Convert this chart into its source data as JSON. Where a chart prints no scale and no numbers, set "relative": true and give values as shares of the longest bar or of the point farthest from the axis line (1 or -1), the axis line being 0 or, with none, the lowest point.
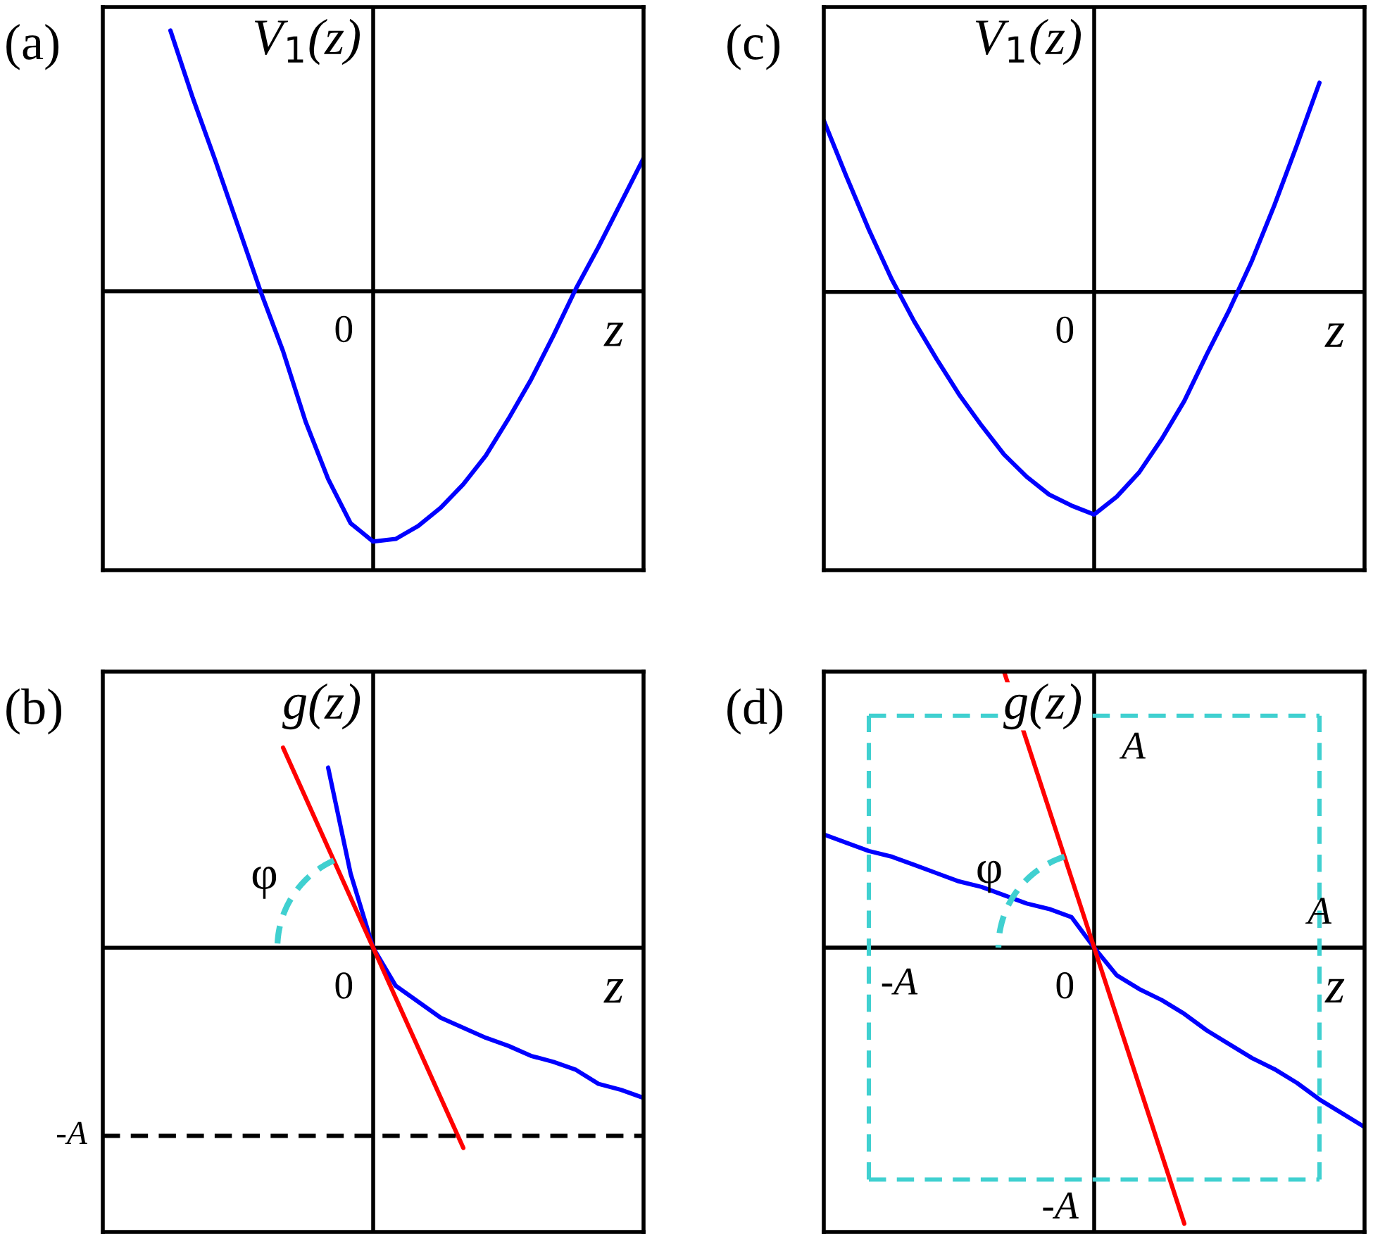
{
  "chart_data": [
    {
      "type": "line",
      "title": "(a)",
      "ylabel": "V$_{1}$(z)",
      "xlabel": "z",
      "relative": true,
      "annotations": [
        "0"
      ],
      "categories": [
        null,
        null,
        null,
        null,
        null,
        null,
        null,
        null,
        null,
        null,
        null,
        null,
        null,
        null,
        null,
        null,
        null,
        null,
        null,
        null,
        null,
        null,
        null,
        null,
        null
      ],
      "series": [
        {
          "color": "#0000ff",
          "values": [
            null,
            null,
            null,
            1,
            0.74,
            0.5,
            0.25,
            0,
            -0.23,
            -0.5,
            -0.72,
            -0.89,
            -0.96,
            -0.95,
            -0.9,
            -0.83,
            -0.74,
            -0.63,
            -0.49,
            -0.34,
            -0.17,
            0.01,
            0.17,
            0.34,
            0.51
          ]
        }
      ]
    },
    {
      "type": "line",
      "title": "(c)",
      "ylabel": "V$_{1}$(z)",
      "xlabel": "z",
      "relative": true,
      "annotations": [
        "0"
      ],
      "categories": [
        null,
        null,
        null,
        null,
        null,
        null,
        null,
        null,
        null,
        null,
        null,
        null,
        null,
        null,
        null,
        null,
        null,
        null,
        null,
        null,
        null,
        null,
        null,
        null,
        null
      ],
      "series": [
        {
          "color": "#0000ff",
          "values": [
            0.77,
            0.52,
            0.28,
            0.06,
            -0.13,
            -0.3,
            -0.46,
            -0.6,
            -0.73,
            -0.83,
            -0.91,
            -0.96,
            -1,
            -0.92,
            -0.81,
            -0.66,
            -0.49,
            -0.28,
            -0.08,
            0.14,
            0.39,
            0.66,
            0.94,
            null,
            null
          ]
        }
      ]
    },
    {
      "type": "line",
      "title": "(b)",
      "ylabel": "g(z)",
      "xlabel": "z",
      "relative": true,
      "annotations": [
        "0",
        "φ"
      ],
      "categories": [
        null,
        null,
        null,
        null,
        null,
        null,
        null,
        null,
        null,
        null,
        null,
        null,
        null,
        null,
        null,
        null,
        null,
        null,
        null,
        null,
        null,
        null,
        null,
        null,
        null
      ],
      "series": [
        {
          "color": "#0000ff",
          "values": [
            null,
            null,
            null,
            null,
            null,
            null,
            null,
            null,
            null,
            null,
            0.9,
            0.37,
            0,
            -0.19,
            -0.27,
            -0.35,
            -0.4,
            -0.45,
            -0.49,
            -0.54,
            -0.57,
            -0.61,
            -0.68,
            -0.71,
            -0.75
          ]
        },
        {
          "color": "#ff0000",
          "values": [
            null,
            null,
            null,
            null,
            null,
            null,
            null,
            null,
            1,
            0.75,
            0.5,
            0.25,
            0,
            -0.25,
            -0.5,
            -0.75,
            -1,
            null,
            null,
            null,
            null,
            null,
            null,
            null,
            null
          ]
        }
      ],
      "ref_lines": [
        {
          "axis": "y",
          "value": -0.94,
          "label": "-A",
          "color": "#000000",
          "line_style": "dashed"
        }
      ]
    },
    {
      "type": "line",
      "title": "(d)",
      "ylabel": "g(z)",
      "xlabel": "z",
      "relative": true,
      "annotations": [
        "0",
        "φ",
        "A",
        "-A"
      ],
      "categories": [
        null,
        null,
        null,
        null,
        null,
        null,
        null,
        null,
        null,
        null,
        null,
        null,
        null,
        null,
        null,
        null,
        null,
        null,
        null,
        null,
        null,
        null,
        null,
        null,
        null
      ],
      "series": [
        {
          "color": "#0000ff",
          "values": [
            0.41,
            0.38,
            0.35,
            0.33,
            0.3,
            0.27,
            0.24,
            0.22,
            0.19,
            0.16,
            0.14,
            0.11,
            0,
            -0.1,
            -0.15,
            -0.19,
            -0.24,
            -0.3,
            -0.35,
            -0.4,
            -0.44,
            -0.49,
            -0.55,
            -0.6,
            -0.65
          ]
        },
        {
          "color": "#ff0000",
          "values": [
            null,
            null,
            null,
            null,
            null,
            null,
            null,
            null,
            1,
            0.75,
            0.5,
            0.25,
            0,
            -0.25,
            -0.5,
            -0.75,
            -1,
            null,
            null,
            null,
            null,
            null,
            null,
            null,
            null
          ]
        }
      ],
      "ref_lines": [
        {
          "axis": "y",
          "value": 0.84,
          "label": "A",
          "color": "#40d0d0",
          "line_style": "dashed"
        },
        {
          "axis": "y",
          "value": -0.84,
          "label": "-A",
          "color": "#40d0d0",
          "line_style": "dashed"
        }
      ]
    }
  ]
}
